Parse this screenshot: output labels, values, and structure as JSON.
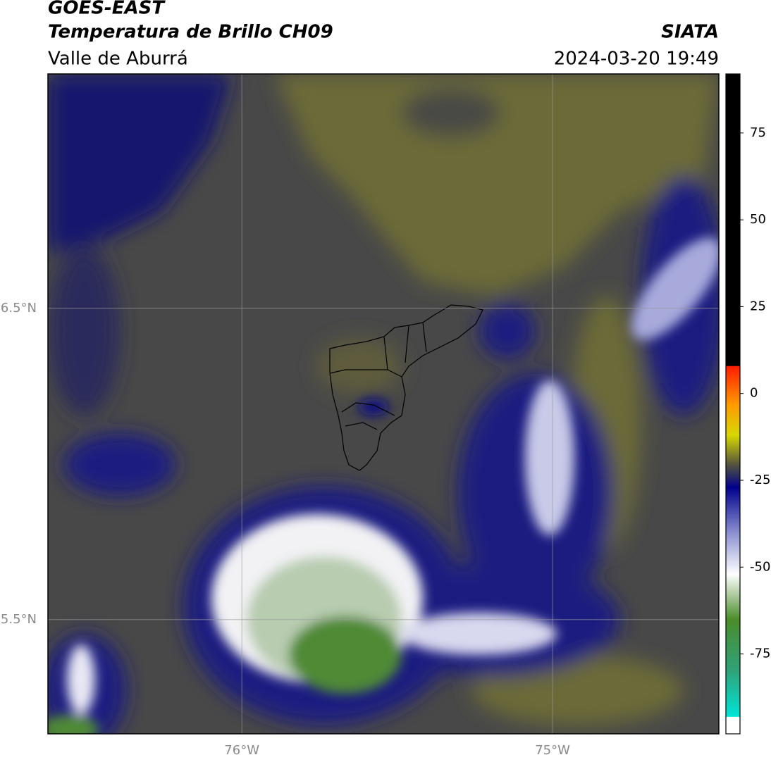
{
  "header": {
    "title": "GOES-EAST",
    "subtitle": "Temperatura de Brillo CH09",
    "region": "Valle de Aburrá",
    "source": "SIATA",
    "timestamp": "2024-03-20 19:49"
  },
  "map": {
    "lat_range": [
      5.133,
      7.253
    ],
    "lon_range": [
      -76.624,
      -74.465
    ],
    "lat_gridlines": [
      {
        "value": 6.5,
        "label": "6.5°N"
      },
      {
        "value": 5.5,
        "label": "5.5°N"
      }
    ],
    "lon_gridlines": [
      {
        "value": -76,
        "label": "76°W"
      },
      {
        "value": -75,
        "label": "75°W"
      }
    ]
  },
  "colorbar": {
    "range": [
      -98,
      92
    ],
    "ticks": [
      75,
      50,
      25,
      0,
      -25,
      -50,
      -75
    ],
    "segments": [
      {
        "from": -98,
        "to": -93,
        "colors": [
          "#ffffff",
          "#ffffff"
        ]
      },
      {
        "from": -93,
        "to": -80,
        "colors": [
          "#00e5d8",
          "#2fa37a"
        ]
      },
      {
        "from": -80,
        "to": -65,
        "colors": [
          "#2fa37a",
          "#4a8c2a"
        ]
      },
      {
        "from": -65,
        "to": -52,
        "colors": [
          "#4a8c2a",
          "#ffffff"
        ]
      },
      {
        "from": -52,
        "to": -40,
        "colors": [
          "#ffffff",
          "#8a8fd0"
        ]
      },
      {
        "from": -40,
        "to": -27,
        "colors": [
          "#8a8fd0",
          "#00008c"
        ]
      },
      {
        "from": -27,
        "to": -20,
        "colors": [
          "#00008c",
          "#5a5a3a"
        ]
      },
      {
        "from": -20,
        "to": -12,
        "colors": [
          "#5a5a3a",
          "#d8d800"
        ]
      },
      {
        "from": -12,
        "to": -3,
        "colors": [
          "#d8d800",
          "#ff9900"
        ]
      },
      {
        "from": -3,
        "to": 8,
        "colors": [
          "#ff9900",
          "#ff1a00"
        ]
      },
      {
        "from": 8,
        "to": 92,
        "colors": [
          "#000000",
          "#000000"
        ]
      }
    ]
  }
}
